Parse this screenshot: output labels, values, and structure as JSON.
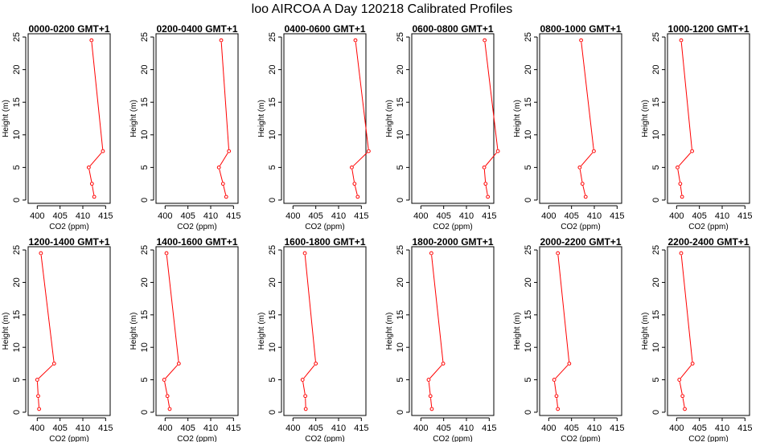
{
  "figure": {
    "title": "loo AIRCOA A  Day 120218  Calibrated Profiles"
  },
  "chart_data": [
    {
      "type": "line",
      "title": "0000-0200 GMT+1",
      "xlabel": "CO2 (ppm)",
      "ylabel": "Height (m)",
      "xlim": [
        398,
        416
      ],
      "ylim": [
        -0.5,
        25.5
      ],
      "xticks": [
        400,
        405,
        410,
        415
      ],
      "yticks": [
        0,
        5,
        10,
        15,
        20,
        25
      ],
      "series": [
        {
          "x": [
            412.5,
            412.0,
            411.3,
            414.4,
            411.9
          ],
          "y": [
            0.5,
            2.5,
            5,
            7.5,
            24.5
          ]
        }
      ]
    },
    {
      "type": "line",
      "title": "0200-0400 GMT+1",
      "xlabel": "CO2 (ppm)",
      "ylabel": "Height (m)",
      "xlim": [
        398,
        416
      ],
      "ylim": [
        -0.5,
        25.5
      ],
      "xticks": [
        400,
        405,
        410,
        415
      ],
      "yticks": [
        0,
        5,
        10,
        15,
        20,
        25
      ],
      "series": [
        {
          "x": [
            413.4,
            412.7,
            411.8,
            414.0,
            412.3
          ],
          "y": [
            0.5,
            2.5,
            5,
            7.5,
            24.5
          ]
        }
      ]
    },
    {
      "type": "line",
      "title": "0400-0600 GMT+1",
      "xlabel": "CO2 (ppm)",
      "ylabel": "Height (m)",
      "xlim": [
        398,
        416
      ],
      "ylim": [
        -0.5,
        25.5
      ],
      "xticks": [
        400,
        405,
        410,
        415
      ],
      "yticks": [
        0,
        5,
        10,
        15,
        20,
        25
      ],
      "series": [
        {
          "x": [
            414.2,
            413.5,
            412.9,
            416.6,
            413.7
          ],
          "y": [
            0.5,
            2.5,
            5,
            7.5,
            24.5
          ]
        }
      ]
    },
    {
      "type": "line",
      "title": "0600-0800 GMT+1",
      "xlabel": "CO2 (ppm)",
      "ylabel": "Height (m)",
      "xlim": [
        398,
        416
      ],
      "ylim": [
        -0.5,
        25.5
      ],
      "xticks": [
        400,
        405,
        410,
        415
      ],
      "yticks": [
        0,
        5,
        10,
        15,
        20,
        25
      ],
      "series": [
        {
          "x": [
            414.7,
            414.2,
            413.9,
            416.9,
            414.0
          ],
          "y": [
            0.5,
            2.5,
            5,
            7.5,
            24.5
          ]
        }
      ]
    },
    {
      "type": "line",
      "title": "0800-1000 GMT+1",
      "xlabel": "CO2 (ppm)",
      "ylabel": "Height (m)",
      "xlim": [
        398,
        416
      ],
      "ylim": [
        -0.5,
        25.5
      ],
      "xticks": [
        400,
        405,
        410,
        415
      ],
      "yticks": [
        0,
        5,
        10,
        15,
        20,
        25
      ],
      "series": [
        {
          "x": [
            408.1,
            407.4,
            406.8,
            409.9,
            407.1
          ],
          "y": [
            0.5,
            2.5,
            5,
            7.5,
            24.5
          ]
        }
      ]
    },
    {
      "type": "line",
      "title": "1000-1200 GMT+1",
      "xlabel": "CO2 (ppm)",
      "ylabel": "Height (m)",
      "xlim": [
        398,
        416
      ],
      "ylim": [
        -0.5,
        25.5
      ],
      "xticks": [
        400,
        405,
        410,
        415
      ],
      "yticks": [
        0,
        5,
        10,
        15,
        20,
        25
      ],
      "series": [
        {
          "x": [
            401.2,
            400.8,
            400.2,
            403.4,
            401.0
          ],
          "y": [
            0.5,
            2.5,
            5,
            7.5,
            24.5
          ]
        }
      ]
    },
    {
      "type": "line",
      "title": "1200-1400 GMT+1",
      "xlabel": "CO2 (ppm)",
      "ylabel": "Height (m)",
      "xlim": [
        398,
        416
      ],
      "ylim": [
        -0.5,
        25.5
      ],
      "xticks": [
        400,
        405,
        410,
        415
      ],
      "yticks": [
        0,
        5,
        10,
        15,
        20,
        25
      ],
      "series": [
        {
          "x": [
            400.4,
            400.2,
            400.0,
            403.7,
            400.8
          ],
          "y": [
            0.5,
            2.5,
            5,
            7.5,
            24.5
          ]
        }
      ]
    },
    {
      "type": "line",
      "title": "1400-1600 GMT+1",
      "xlabel": "CO2 (ppm)",
      "ylabel": "Height (m)",
      "xlim": [
        398,
        416
      ],
      "ylim": [
        -0.5,
        25.5
      ],
      "xticks": [
        400,
        405,
        410,
        415
      ],
      "yticks": [
        0,
        5,
        10,
        15,
        20,
        25
      ],
      "series": [
        {
          "x": [
            401.0,
            400.5,
            399.8,
            403.0,
            400.3
          ],
          "y": [
            0.5,
            2.5,
            5,
            7.5,
            24.5
          ]
        }
      ]
    },
    {
      "type": "line",
      "title": "1600-1800 GMT+1",
      "xlabel": "CO2 (ppm)",
      "ylabel": "Height (m)",
      "xlim": [
        398,
        416
      ],
      "ylim": [
        -0.5,
        25.5
      ],
      "xticks": [
        400,
        405,
        410,
        415
      ],
      "yticks": [
        0,
        5,
        10,
        15,
        20,
        25
      ],
      "series": [
        {
          "x": [
            402.8,
            402.7,
            402.1,
            405.0,
            402.6
          ],
          "y": [
            0.5,
            2.5,
            5,
            7.5,
            24.5
          ]
        }
      ]
    },
    {
      "type": "line",
      "title": "1800-2000 GMT+1",
      "xlabel": "CO2 (ppm)",
      "ylabel": "Height (m)",
      "xlim": [
        398,
        416
      ],
      "ylim": [
        -0.5,
        25.5
      ],
      "xticks": [
        400,
        405,
        410,
        415
      ],
      "yticks": [
        0,
        5,
        10,
        15,
        20,
        25
      ],
      "series": [
        {
          "x": [
            402.4,
            402.1,
            401.7,
            404.9,
            402.3
          ],
          "y": [
            0.5,
            2.5,
            5,
            7.5,
            24.5
          ]
        }
      ]
    },
    {
      "type": "line",
      "title": "2000-2200 GMT+1",
      "xlabel": "CO2 (ppm)",
      "ylabel": "Height (m)",
      "xlim": [
        398,
        416
      ],
      "ylim": [
        -0.5,
        25.5
      ],
      "xticks": [
        400,
        405,
        410,
        415
      ],
      "yticks": [
        0,
        5,
        10,
        15,
        20,
        25
      ],
      "series": [
        {
          "x": [
            402.0,
            401.7,
            401.2,
            404.5,
            402.0
          ],
          "y": [
            0.5,
            2.5,
            5,
            7.5,
            24.5
          ]
        }
      ]
    },
    {
      "type": "line",
      "title": "2200-2400 GMT+1",
      "xlabel": "CO2 (ppm)",
      "ylabel": "Height (m)",
      "xlim": [
        398,
        416
      ],
      "ylim": [
        -0.5,
        25.5
      ],
      "xticks": [
        400,
        405,
        410,
        415
      ],
      "yticks": [
        0,
        5,
        10,
        15,
        20,
        25
      ],
      "series": [
        {
          "x": [
            401.8,
            401.3,
            400.6,
            403.5,
            401.0
          ],
          "y": [
            0.5,
            2.5,
            5,
            7.5,
            24.5
          ]
        }
      ]
    }
  ],
  "style": {
    "line_color": "#ff0000",
    "axis_color": "#000000",
    "background": "#ffffff"
  }
}
